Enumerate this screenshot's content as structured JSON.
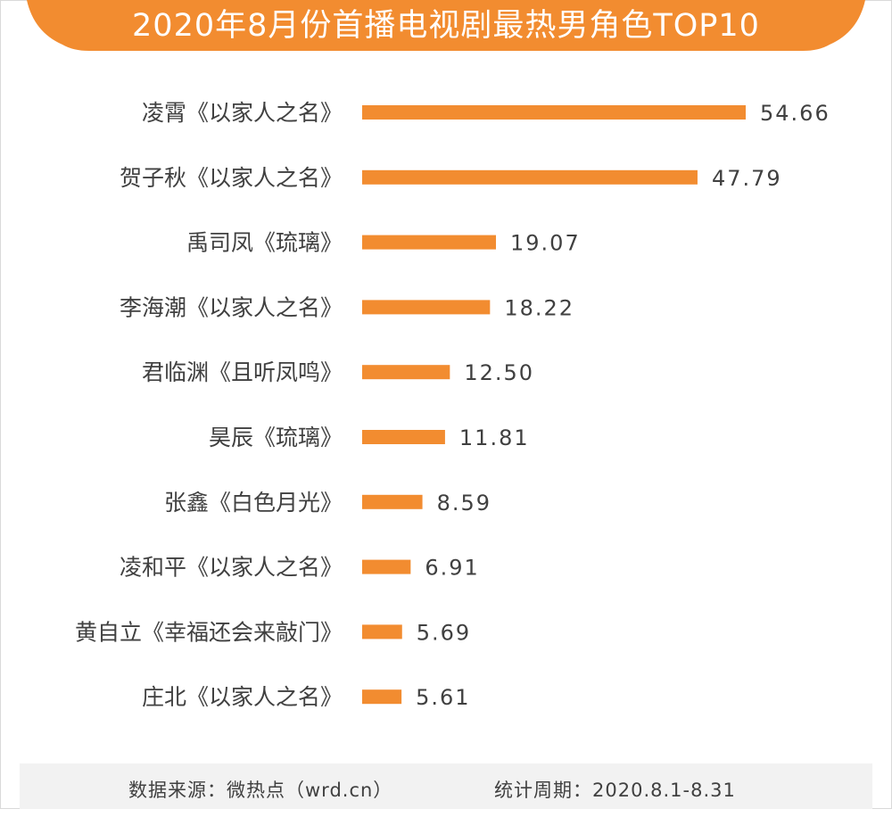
{
  "title": "2020年8月份首播电视剧最热男角色TOP10",
  "colors": {
    "accent": "#F28C30",
    "text": "#404040",
    "footer_bg": "#F2F2F2"
  },
  "chart_data": {
    "type": "bar",
    "orientation": "horizontal",
    "title": "2020年8月份首播电视剧最热男角色TOP10",
    "categories": [
      "凌霄《以家人之名》",
      "贺子秋《以家人之名》",
      "禹司凤《琉璃》",
      "李海潮《以家人之名》",
      "君临渊《且听凤鸣》",
      "昊辰《琉璃》",
      "张鑫《白色月光》",
      "凌和平《以家人之名》",
      "黄自立《幸福还会来敲门》",
      "庄北《以家人之名》"
    ],
    "values": [
      54.66,
      47.79,
      19.07,
      18.22,
      12.5,
      11.81,
      8.59,
      6.91,
      5.69,
      5.61
    ],
    "value_labels": [
      "54.66",
      "47.79",
      "19.07",
      "18.22",
      "12.50",
      "11.81",
      "8.59",
      "6.91",
      "5.69",
      "5.61"
    ],
    "xlim": [
      0,
      60
    ],
    "grid": false,
    "color": "#F28C30"
  },
  "footer": {
    "source": "数据来源：微热点（wrd.cn）",
    "period": "统计周期：2020.8.1-8.31"
  }
}
